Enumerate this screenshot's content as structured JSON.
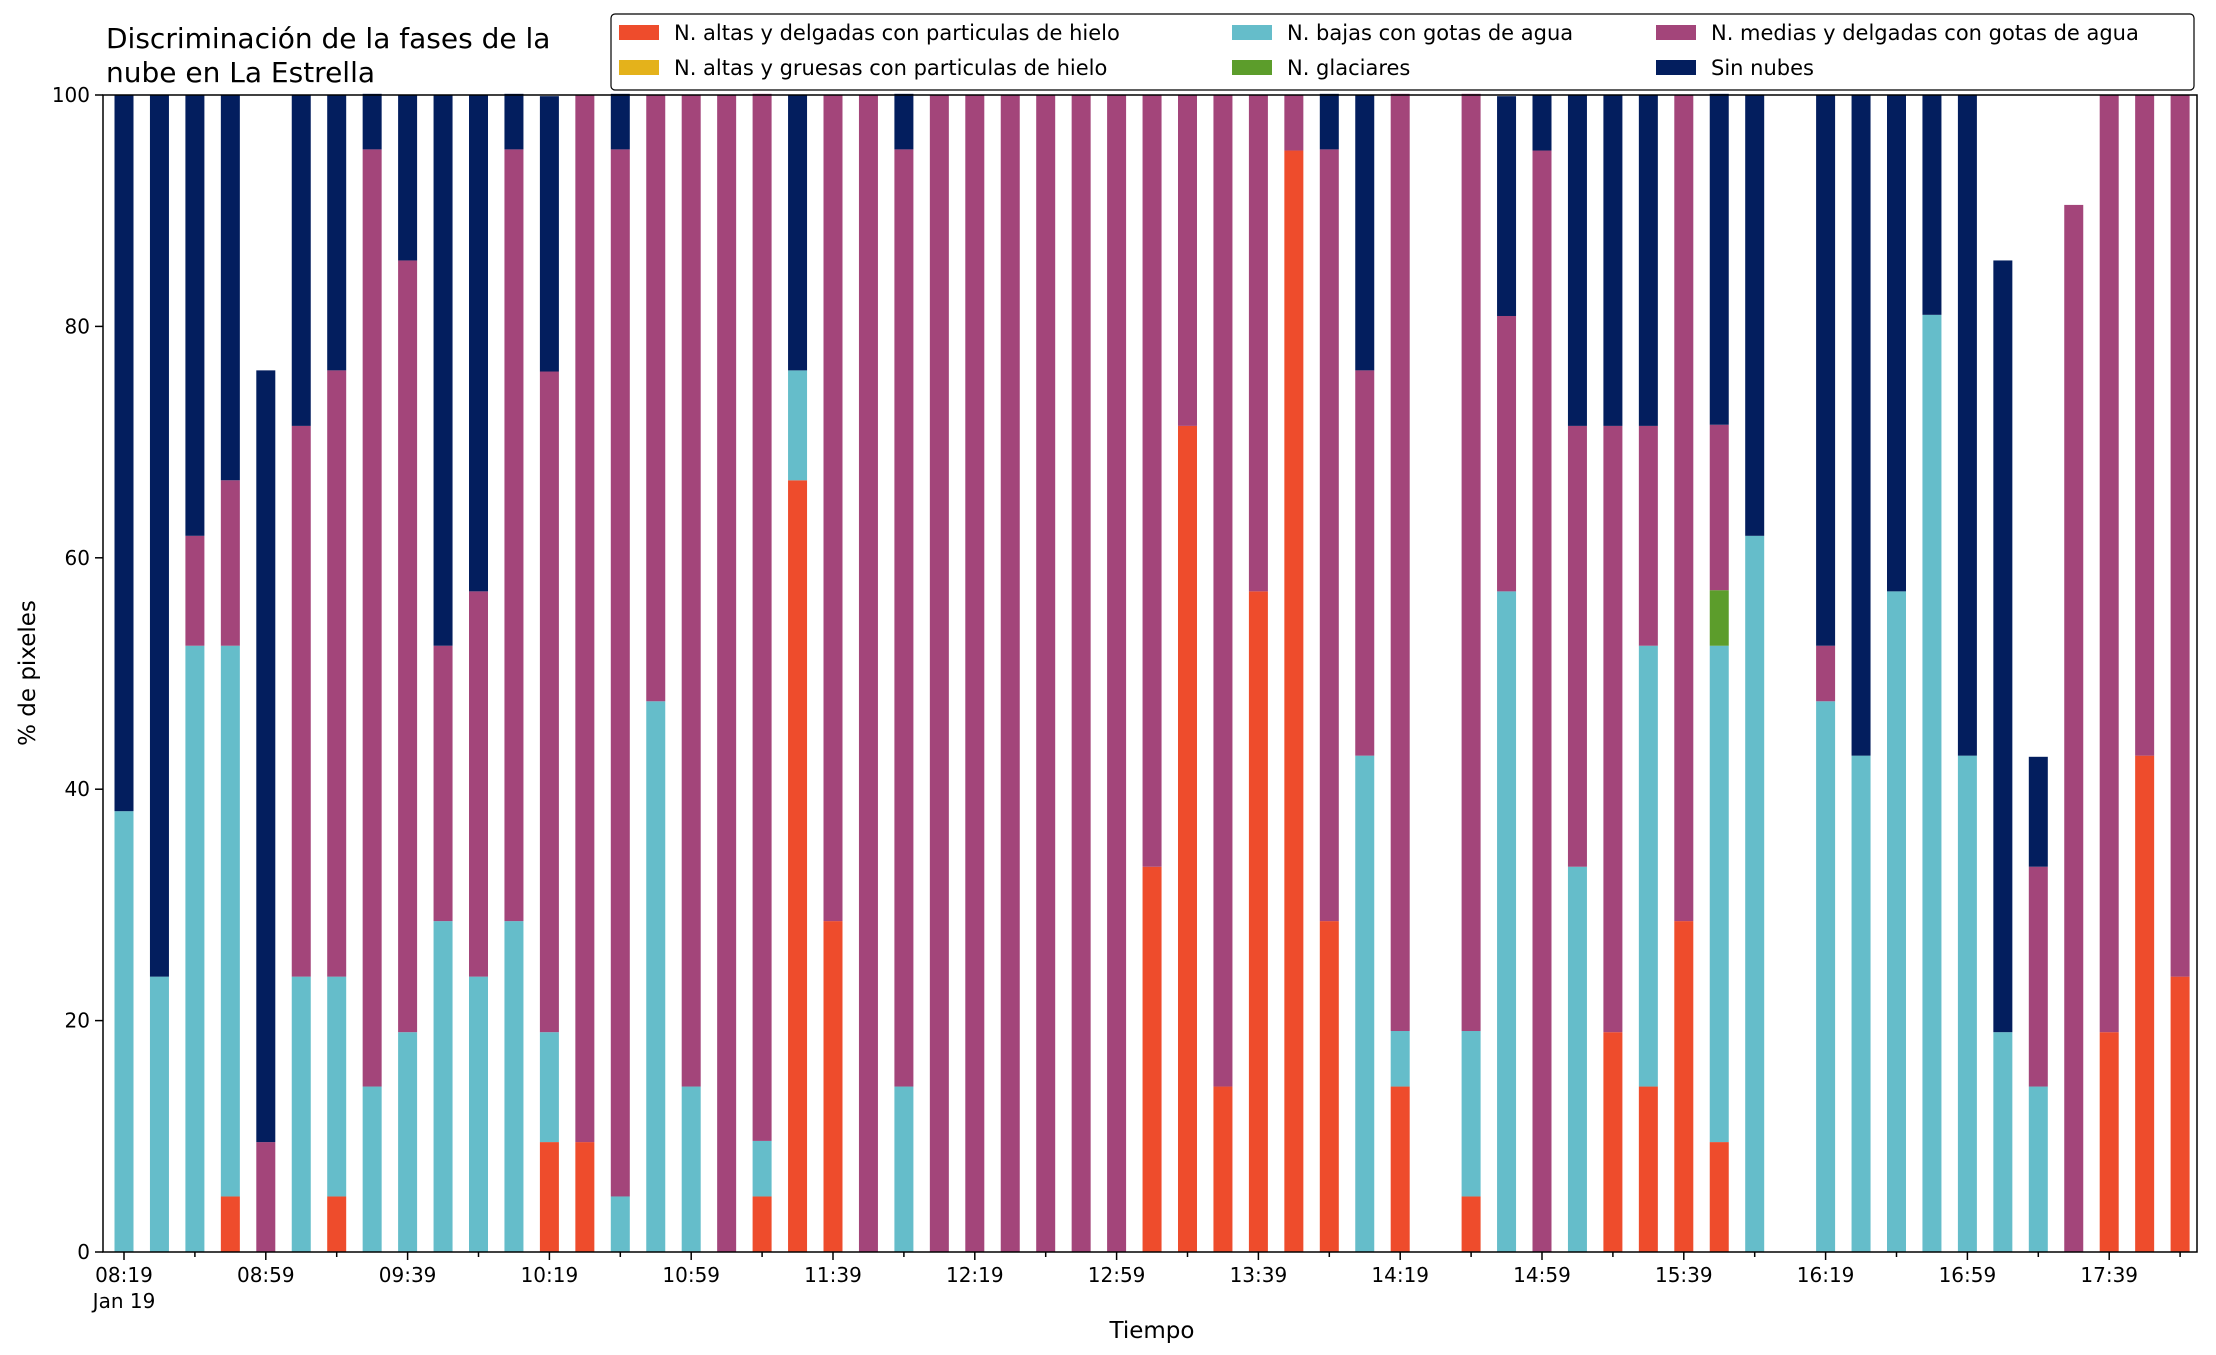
{
  "chart_data": {
    "type": "bar",
    "stacked": true,
    "title": "Discriminación de la fases de la\nnube en La Estrella",
    "xlabel": "Tiempo",
    "ylabel": "% de pixeles",
    "ylim": [
      0,
      100
    ],
    "yticks": [
      0,
      20,
      40,
      60,
      80,
      100
    ],
    "grid": false,
    "legend_position": "top-right",
    "x_start": "08:19",
    "x_step_minutes": 10,
    "x_tick_labels": [
      "08:19",
      "08:59",
      "09:39",
      "10:19",
      "10:59",
      "11:39",
      "12:19",
      "12:59",
      "13:39",
      "14:19",
      "14:59",
      "15:39",
      "16:19",
      "16:59",
      "17:39"
    ],
    "x_date_label": "Jan 19",
    "series": [
      {
        "name": "N. altas y delgadas con particulas de hielo",
        "color": "#ee4c2c",
        "values": [
          0,
          0,
          0,
          4.8,
          0,
          0,
          4.8,
          0,
          0,
          0,
          0,
          0,
          9.5,
          9.5,
          0,
          0,
          0,
          0,
          4.8,
          66.7,
          28.6,
          0,
          0,
          0,
          0,
          0,
          0,
          0,
          0,
          33.3,
          71.4,
          14.3,
          57.1,
          95.2,
          28.6,
          0,
          14.3,
          null,
          4.8,
          0,
          0,
          0,
          19,
          14.3,
          28.6,
          9.5,
          0,
          null,
          0,
          0,
          0,
          0,
          0,
          0,
          0,
          0,
          19,
          42.9,
          23.8
        ]
      },
      {
        "name": "N. altas y gruesas con particulas de hielo",
        "color": "#e4b21b",
        "values": [
          0,
          0,
          0,
          0,
          0,
          0,
          0,
          0,
          0,
          0,
          0,
          0,
          0,
          0,
          0,
          0,
          0,
          0,
          0,
          0,
          0,
          0,
          0,
          0,
          0,
          0,
          0,
          0,
          0,
          0,
          0,
          0,
          0,
          0,
          0,
          0,
          0,
          null,
          0,
          0,
          0,
          0,
          0,
          0,
          0,
          0,
          0,
          null,
          0,
          0,
          0,
          0,
          0,
          0,
          0,
          0,
          0,
          0,
          0
        ]
      },
      {
        "name": "N. bajas con gotas de agua",
        "color": "#65bdca",
        "values": [
          38.1,
          23.8,
          52.4,
          47.6,
          0,
          23.8,
          19,
          14.3,
          19,
          28.6,
          23.8,
          28.6,
          9.5,
          0,
          4.8,
          47.6,
          14.3,
          0,
          4.8,
          9.5,
          0,
          0,
          14.3,
          0,
          0,
          0,
          0,
          0,
          0,
          0,
          0,
          0,
          0,
          0,
          0,
          42.9,
          4.8,
          null,
          14.3,
          57.1,
          0,
          33.3,
          0,
          38.1,
          0,
          42.9,
          61.9,
          null,
          47.6,
          42.9,
          57.1,
          81,
          42.9,
          19,
          14.3,
          0,
          0,
          0,
          0
        ]
      },
      {
        "name": "N. glaciares",
        "color": "#5c9d2b",
        "values": [
          0,
          0,
          0,
          0,
          0,
          0,
          0,
          0,
          0,
          0,
          0,
          0,
          0,
          0,
          0,
          0,
          0,
          0,
          0,
          0,
          0,
          0,
          0,
          0,
          0,
          0,
          0,
          0,
          0,
          0,
          0,
          0,
          0,
          0,
          0,
          0,
          0,
          null,
          0,
          0,
          0,
          0,
          0,
          0,
          0,
          4.8,
          0,
          null,
          0,
          0,
          0,
          0,
          0,
          0,
          0,
          0,
          0,
          0,
          0
        ]
      },
      {
        "name": "N. medias y delgadas con gotas de agua",
        "color": "#a3457a",
        "values": [
          0,
          0,
          9.5,
          14.3,
          9.5,
          47.6,
          52.4,
          81,
          66.7,
          23.8,
          33.3,
          66.7,
          57.1,
          90.5,
          90.5,
          52.4,
          85.7,
          100,
          90.5,
          0,
          71.4,
          100,
          81,
          100,
          100,
          100,
          100,
          100,
          100,
          66.7,
          28.6,
          85.7,
          42.9,
          4.8,
          66.7,
          33.3,
          81,
          null,
          81,
          23.8,
          95.2,
          38.1,
          52.4,
          19,
          71.4,
          14.3,
          0,
          null,
          4.8,
          0,
          0,
          0,
          0,
          0,
          19,
          90.5,
          81,
          57.1,
          76.2
        ]
      },
      {
        "name": "Sin nubes",
        "color": "#031e5e",
        "values": [
          61.9,
          76.2,
          38.1,
          33.3,
          66.7,
          28.6,
          23.8,
          4.8,
          14.3,
          47.6,
          42.9,
          4.8,
          23.8,
          0,
          4.8,
          0,
          0,
          0,
          0,
          23.8,
          0,
          0,
          4.8,
          0,
          0,
          0,
          0,
          0,
          0,
          0,
          0,
          0,
          0,
          0,
          4.8,
          23.8,
          0,
          null,
          0,
          19,
          4.8,
          28.6,
          28.6,
          28.6,
          0,
          28.6,
          38.1,
          null,
          47.6,
          57.1,
          42.9,
          19,
          57.1,
          66.7,
          9.5,
          0,
          0,
          0,
          0
        ]
      }
    ]
  }
}
